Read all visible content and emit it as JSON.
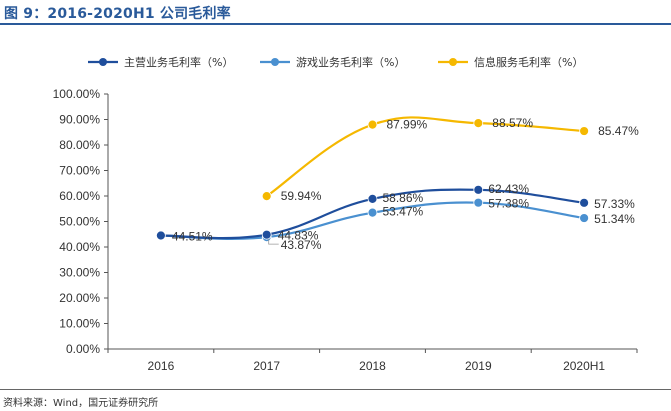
{
  "figure": {
    "title": "图 9：2016-2020H1 公司毛利率",
    "source": "资料来源：Wind，国元证券研究所"
  },
  "chart_data": {
    "type": "line",
    "title": "图 9：2016-2020H1 公司毛利率",
    "xlabel": "",
    "ylabel": "",
    "categories": [
      "2016",
      "2017",
      "2018",
      "2019",
      "2020H1"
    ],
    "ylim": [
      0,
      100
    ],
    "ytick_labels": [
      "0.00%",
      "10.00%",
      "20.00%",
      "30.00%",
      "40.00%",
      "50.00%",
      "60.00%",
      "70.00%",
      "80.00%",
      "90.00%",
      "100.00%"
    ],
    "legend_position": "top",
    "grid": false,
    "series": [
      {
        "name": "主营业务毛利率（%）",
        "color": "#1f4e9c",
        "values": [
          44.51,
          44.83,
          58.86,
          62.43,
          57.33
        ],
        "labels": [
          "44.51%",
          "44.83%",
          "58.86%",
          "62.43%",
          "57.33%"
        ]
      },
      {
        "name": "游戏业务毛利率（%）",
        "color": "#4a90d0",
        "values": [
          44.51,
          43.87,
          53.47,
          57.38,
          51.34
        ],
        "labels": [
          "",
          "43.87%",
          "53.47%",
          "57.38%",
          "51.34%"
        ]
      },
      {
        "name": "信息服务毛利率（%）",
        "color": "#f5b800",
        "values": [
          null,
          59.94,
          87.99,
          88.57,
          85.47
        ],
        "labels": [
          "",
          "59.94%",
          "87.99%",
          "88.57%",
          "85.47%"
        ]
      }
    ]
  }
}
